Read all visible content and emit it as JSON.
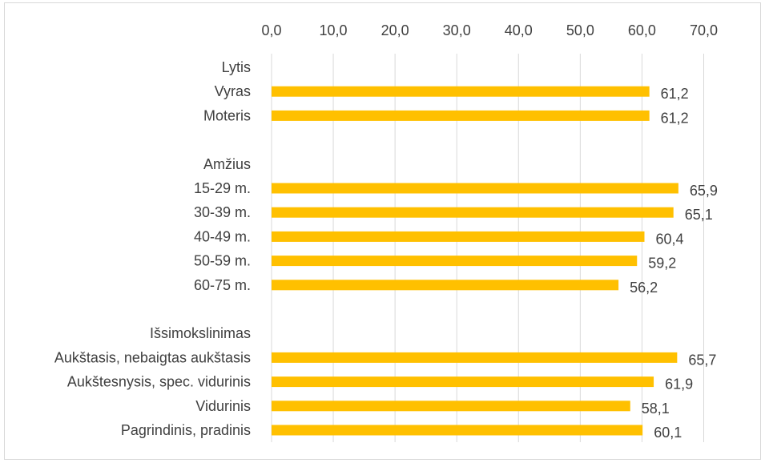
{
  "chart_data": {
    "type": "bar",
    "orientation": "horizontal",
    "title": "",
    "xlabel": "",
    "ylabel": "",
    "xlim": [
      0,
      70
    ],
    "x_ticks": [
      "0,0",
      "10,0",
      "20,0",
      "30,0",
      "40,0",
      "50,0",
      "60,0",
      "70,0"
    ],
    "axis_position": "top",
    "grid": true,
    "legend": "none",
    "bar_color": "#FFC000",
    "rows": [
      {
        "label": "Lytis",
        "value": null,
        "is_header": true
      },
      {
        "label": "Vyras",
        "value": 61.2,
        "value_label": "61,2"
      },
      {
        "label": "Moteris",
        "value": 61.2,
        "value_label": "61,2"
      },
      {
        "label": "",
        "value": null,
        "is_spacer": true
      },
      {
        "label": "Amžius",
        "value": null,
        "is_header": true
      },
      {
        "label": "15-29 m.",
        "value": 65.9,
        "value_label": "65,9"
      },
      {
        "label": "30-39 m.",
        "value": 65.1,
        "value_label": "65,1"
      },
      {
        "label": "40-49 m.",
        "value": 60.4,
        "value_label": "60,4"
      },
      {
        "label": "50-59 m.",
        "value": 59.2,
        "value_label": "59,2"
      },
      {
        "label": "60-75 m.",
        "value": 56.2,
        "value_label": "56,2"
      },
      {
        "label": "",
        "value": null,
        "is_spacer": true
      },
      {
        "label": "Išsimokslinimas",
        "value": null,
        "is_header": true
      },
      {
        "label": "Aukštasis, nebaigtas aukštasis",
        "value": 65.7,
        "value_label": "65,7"
      },
      {
        "label": "Aukštesnysis, spec. vidurinis",
        "value": 61.9,
        "value_label": "61,9"
      },
      {
        "label": "Vidurinis",
        "value": 58.1,
        "value_label": "58,1"
      },
      {
        "label": "Pagrindinis, pradinis",
        "value": 60.1,
        "value_label": "60,1"
      }
    ]
  }
}
